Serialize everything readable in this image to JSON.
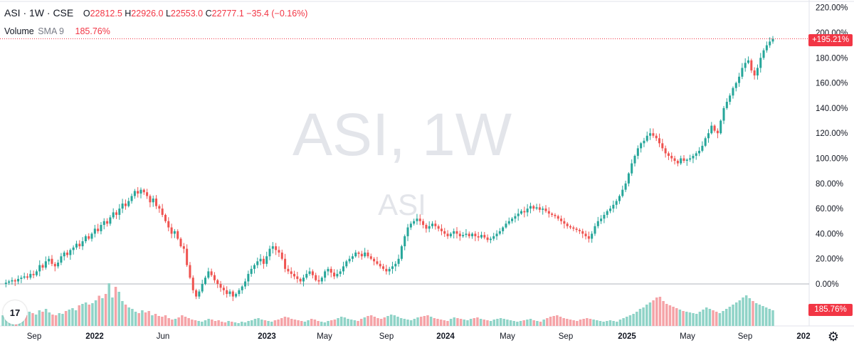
{
  "legend": {
    "symbol": "ASI · 1W · CSE",
    "o_label": "O",
    "o_value": "22812.5",
    "h_label": "H",
    "h_value": "22926.0",
    "l_label": "L",
    "l_value": "22553.0",
    "c_label": "C",
    "c_value": "22777.1",
    "change": "−35.4 (−0.16%)"
  },
  "volume_legend": {
    "label": "Volume",
    "sma": "SMA 9",
    "value": "185.76%"
  },
  "watermark": {
    "main": "ASI, 1W",
    "sub": "ASI"
  },
  "badges": {
    "last_price": "+195.21%",
    "volume": "185.76%"
  },
  "logo_text": "17",
  "settings_icon": "gear-icon",
  "colors": {
    "up": "#26a69a",
    "down": "#ef5350",
    "volume_up": "#8fd3c7",
    "volume_down": "#f5a3a7",
    "price_line": "#f23645",
    "zero_line": "#b2b5be"
  },
  "chart_data": {
    "type": "candlestick",
    "y_scale": "percent",
    "y_ticks": [
      "220.00%",
      "200.00%",
      "180.00%",
      "160.00%",
      "140.00%",
      "120.00%",
      "100.00%",
      "80.00%",
      "60.00%",
      "40.00%",
      "20.00%",
      "0.00%"
    ],
    "y_tick_values": [
      220,
      200,
      180,
      160,
      140,
      120,
      100,
      80,
      60,
      40,
      20,
      0
    ],
    "x_ticks": [
      "Sep",
      "2022",
      "Jun",
      "2023",
      "May",
      "Sep",
      "2024",
      "May",
      "Sep",
      "2025",
      "May",
      "Sep",
      "202"
    ],
    "ylim": [
      -35,
      225
    ],
    "last_value": 195.21,
    "series_pct": [
      0,
      1,
      2,
      3,
      2,
      4,
      5,
      6,
      5,
      8,
      7,
      10,
      15,
      13,
      18,
      20,
      16,
      14,
      17,
      22,
      25,
      23,
      27,
      29,
      32,
      30,
      34,
      38,
      36,
      40,
      44,
      42,
      47,
      50,
      48,
      53,
      57,
      55,
      60,
      64,
      62,
      66,
      70,
      74,
      72,
      75,
      73,
      70,
      65,
      68,
      62,
      60,
      55,
      50,
      45,
      40,
      42,
      36,
      30,
      28,
      15,
      5,
      -5,
      -10,
      -6,
      0,
      5,
      10,
      7,
      3,
      0,
      -3,
      -5,
      -8,
      -6,
      -10,
      -8,
      -5,
      -2,
      2,
      8,
      12,
      15,
      18,
      20,
      16,
      22,
      28,
      30,
      27,
      25,
      20,
      12,
      10,
      8,
      6,
      4,
      2,
      5,
      8,
      10,
      7,
      3,
      2,
      5,
      10,
      12,
      9,
      6,
      8,
      10,
      14,
      18,
      20,
      22,
      25,
      24,
      22,
      25,
      22,
      20,
      18,
      16,
      14,
      12,
      10,
      12,
      14,
      16,
      20,
      30,
      38,
      45,
      48,
      50,
      52,
      50,
      47,
      44,
      46,
      48,
      46,
      44,
      42,
      40,
      38,
      40,
      42,
      40,
      38,
      39,
      40,
      38,
      40,
      38,
      37,
      39,
      37,
      35,
      36,
      38,
      40,
      42,
      45,
      48,
      50,
      52,
      54,
      56,
      58,
      57,
      60,
      62,
      60,
      61,
      59,
      60,
      58,
      56,
      55,
      54,
      52,
      50,
      48,
      46,
      45,
      44,
      43,
      42,
      40,
      38,
      36,
      40,
      46,
      50,
      52,
      55,
      58,
      60,
      63,
      66,
      70,
      75,
      80,
      88,
      96,
      102,
      108,
      112,
      114,
      118,
      120,
      118,
      116,
      112,
      108,
      104,
      102,
      100,
      98,
      96,
      100,
      98,
      99,
      100,
      102,
      104,
      106,
      110,
      116,
      120,
      126,
      122,
      120,
      130,
      140,
      145,
      150,
      156,
      160,
      165,
      172,
      176,
      178,
      170,
      166,
      172,
      180,
      186,
      190,
      193,
      195.21
    ],
    "volume_pct": [
      30,
      22,
      18,
      20,
      16,
      25,
      22,
      30,
      40,
      36,
      32,
      44,
      40,
      48,
      38,
      32,
      30,
      36,
      34,
      42,
      46,
      50,
      44,
      58,
      62,
      66,
      60,
      64,
      72,
      85,
      78,
      90,
      120,
      80,
      110,
      96,
      70,
      60,
      52,
      48,
      40,
      36,
      44,
      38,
      42,
      30,
      34,
      28,
      26,
      30,
      22,
      18,
      20,
      24,
      30,
      26,
      22,
      18,
      16,
      14,
      12,
      16,
      20,
      18,
      14,
      16,
      12,
      10,
      14,
      12,
      10,
      8,
      12,
      10,
      14,
      16,
      20,
      22,
      18,
      16,
      14,
      12,
      16,
      18,
      22,
      26,
      24,
      20,
      18,
      16,
      14,
      12,
      16,
      20,
      18,
      14,
      12,
      10,
      14,
      16,
      18,
      22,
      26,
      24,
      20,
      18,
      16,
      14,
      20,
      24,
      28,
      30,
      26,
      22,
      20,
      24,
      28,
      32,
      30,
      26,
      22,
      20,
      18,
      16,
      20,
      24,
      26,
      28,
      30,
      26,
      22,
      20,
      18,
      16,
      14,
      20,
      24,
      22,
      20,
      18,
      16,
      20,
      22,
      24,
      20,
      18,
      16,
      14,
      18,
      20,
      22,
      20,
      18,
      16,
      14,
      12,
      14,
      16,
      18,
      20,
      16,
      14,
      12,
      18,
      22,
      26,
      28,
      30,
      26,
      22,
      20,
      18,
      16,
      14,
      18,
      20,
      22,
      20,
      18,
      16,
      14,
      12,
      14,
      16,
      14,
      12,
      18,
      22,
      26,
      30,
      34,
      40,
      48,
      52,
      60,
      66,
      72,
      80,
      82,
      70,
      62,
      58,
      54,
      50,
      46,
      42,
      40,
      38,
      36,
      34,
      40,
      46,
      52,
      48,
      44,
      40,
      36,
      42,
      48,
      54,
      60,
      66,
      72,
      80,
      86,
      78,
      70,
      64,
      60,
      56,
      52,
      48,
      44
    ]
  }
}
